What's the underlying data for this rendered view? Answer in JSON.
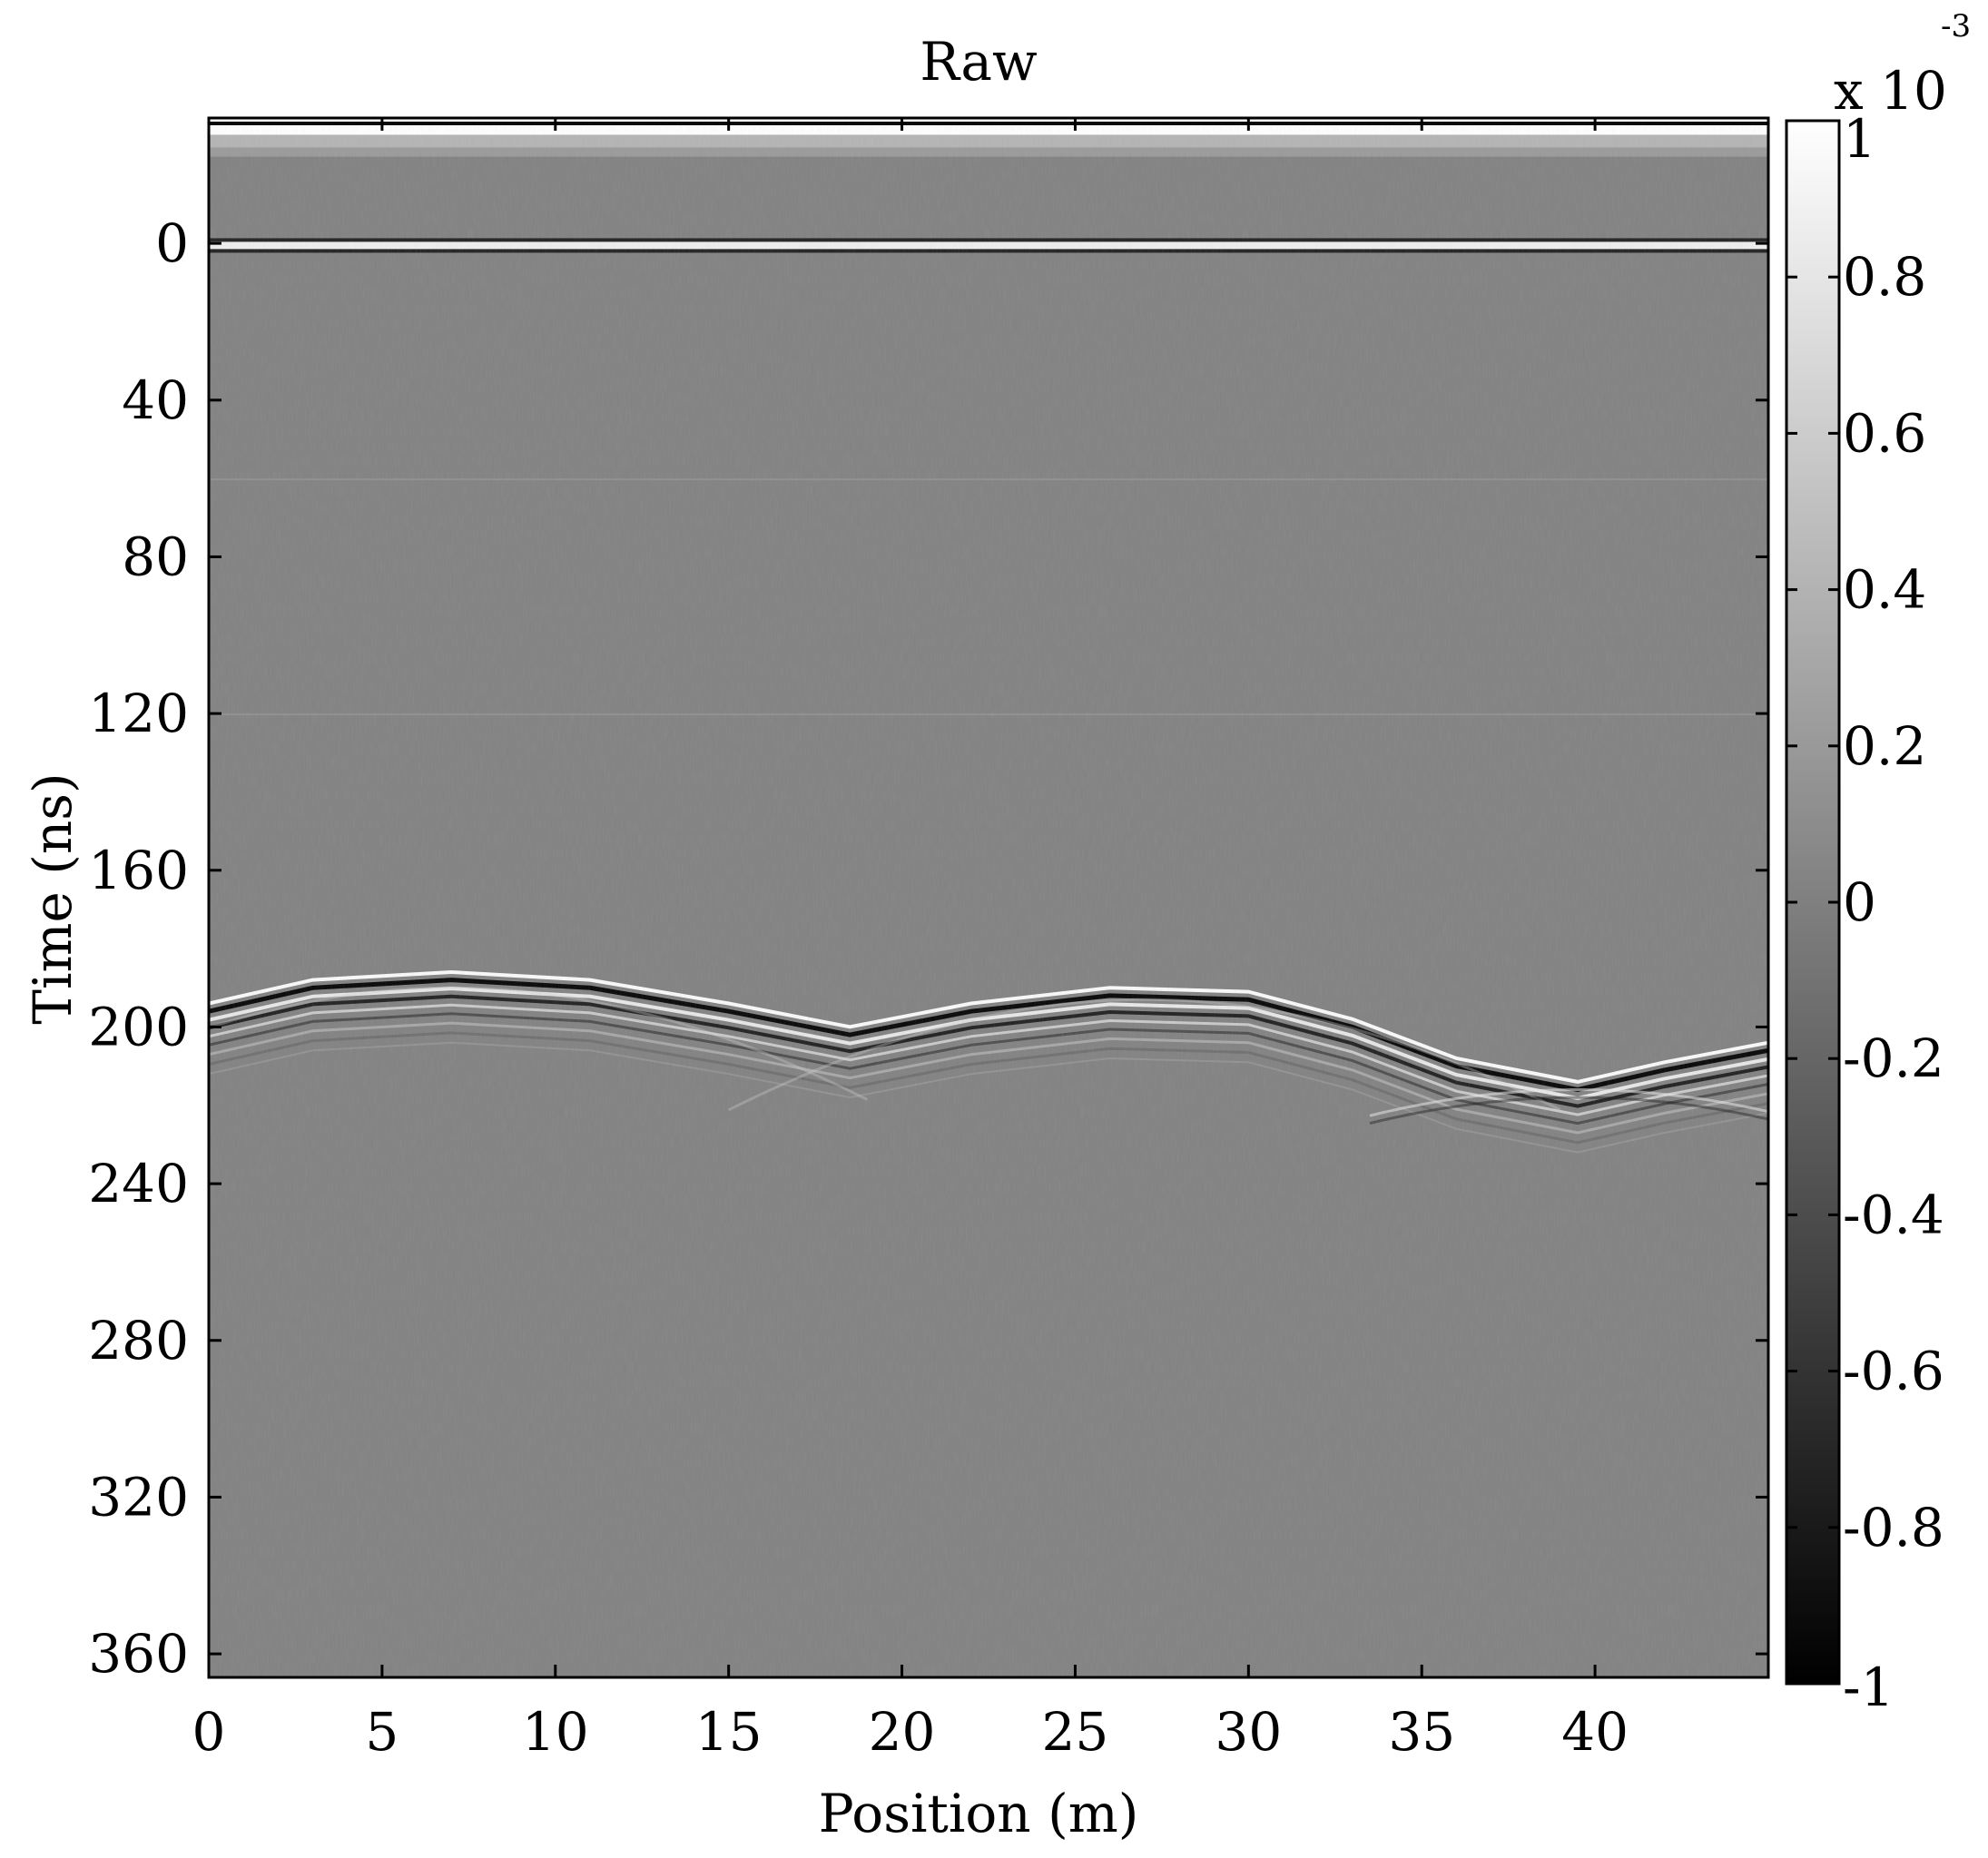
{
  "chart_data": {
    "type": "heatmap",
    "title": "Raw",
    "xlabel": "Position (m)",
    "ylabel": "Time (ns)",
    "xlim": [
      0,
      45
    ],
    "ylim": [
      -32,
      366
    ],
    "y_inverted": true,
    "x_ticks": [
      "0",
      "5",
      "10",
      "15",
      "20",
      "25",
      "30",
      "35",
      "40"
    ],
    "x_tick_values": [
      0,
      5,
      10,
      15,
      20,
      25,
      30,
      35,
      40
    ],
    "y_ticks": [
      "0",
      "40",
      "80",
      "120",
      "160",
      "200",
      "240",
      "280",
      "320",
      "360"
    ],
    "y_tick_values": [
      0,
      40,
      80,
      120,
      160,
      200,
      240,
      280,
      320,
      360
    ],
    "colorbar": {
      "range": [
        -1,
        1
      ],
      "colormap": "gray",
      "ticks": [
        "1",
        "0.8",
        "0.6",
        "0.4",
        "0.2",
        "0",
        "-0.2",
        "-0.4",
        "-0.6",
        "-0.8",
        "-1"
      ],
      "tick_values": [
        1,
        0.8,
        0.6,
        0.4,
        0.2,
        0,
        -0.2,
        -0.4,
        -0.6,
        -0.8,
        -1
      ],
      "multiplier_text": "x 10",
      "multiplier_exponent": "-3"
    },
    "features": {
      "direct_wave_times_ns": [
        -30,
        1
      ],
      "reflector_points": [
        {
          "x": 0,
          "t": 196
        },
        {
          "x": 3,
          "t": 190
        },
        {
          "x": 7,
          "t": 188
        },
        {
          "x": 11,
          "t": 190
        },
        {
          "x": 15,
          "t": 196
        },
        {
          "x": 18.5,
          "t": 202
        },
        {
          "x": 22,
          "t": 196
        },
        {
          "x": 26,
          "t": 192
        },
        {
          "x": 30,
          "t": 193
        },
        {
          "x": 33,
          "t": 200
        },
        {
          "x": 36,
          "t": 210
        },
        {
          "x": 39.5,
          "t": 216
        },
        {
          "x": 42,
          "t": 211
        },
        {
          "x": 45,
          "t": 206
        }
      ]
    }
  }
}
